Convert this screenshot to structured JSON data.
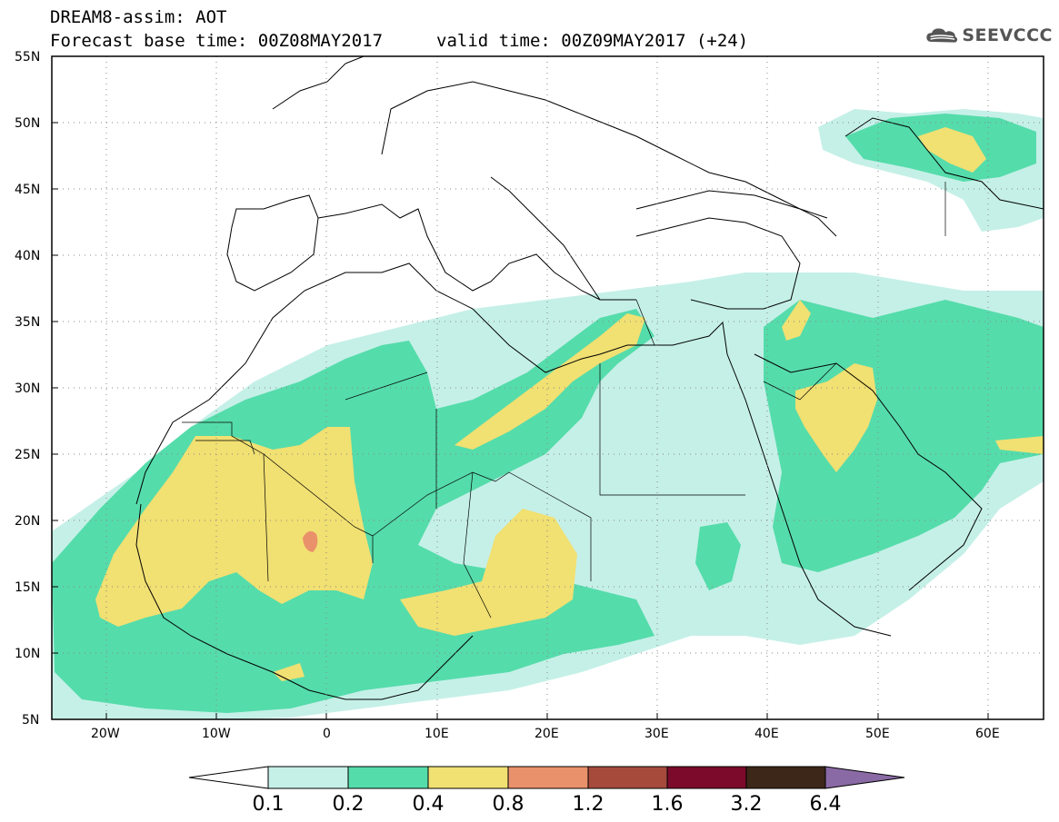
{
  "header": {
    "line1": "DREAM8-assim: AOT",
    "base_time": "Forecast base time: 00Z08MAY2017",
    "valid_time": "valid time: 00Z09MAY2017 (+24)"
  },
  "logo": {
    "text": "SEEVCCC",
    "icon": "cloud-icon"
  },
  "map": {
    "lat_labels": [
      "55N",
      "50N",
      "45N",
      "40N",
      "35N",
      "30N",
      "25N",
      "20N",
      "15N",
      "10N",
      "5N"
    ],
    "lon_labels": [
      "20W",
      "10W",
      "0",
      "10E",
      "20E",
      "30E",
      "40E",
      "50E",
      "60E"
    ],
    "lon_range": [
      -25,
      65
    ],
    "lat_range": [
      5,
      55
    ],
    "grid": true
  },
  "colorbar": {
    "levels": [
      "0.1",
      "0.2",
      "0.4",
      "0.8",
      "1.2",
      "1.6",
      "3.2",
      "6.4"
    ],
    "colors": [
      "#ffffff",
      "#c5f0e7",
      "#55dcab",
      "#f1e072",
      "#e9916a",
      "#a64b3c",
      "#7b0a2b",
      "#3d2718",
      "#8a6aa5"
    ]
  }
}
